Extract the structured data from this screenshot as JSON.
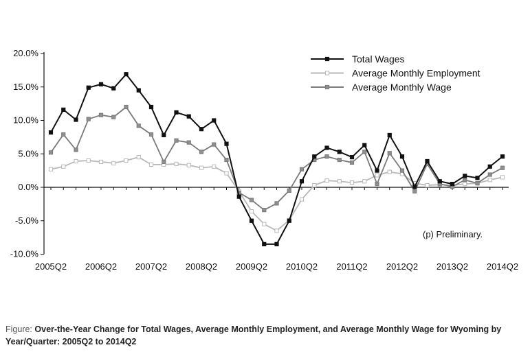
{
  "chart_data": {
    "type": "line",
    "x": [
      "2005Q2",
      "2005Q3",
      "2005Q4",
      "2006Q1",
      "2006Q2",
      "2006Q3",
      "2006Q4",
      "2007Q1",
      "2007Q2",
      "2007Q3",
      "2007Q4",
      "2008Q1",
      "2008Q2",
      "2008Q3",
      "2008Q4",
      "2009Q1",
      "2009Q2",
      "2009Q3",
      "2009Q4",
      "2010Q1",
      "2010Q2",
      "2010Q3",
      "2010Q4",
      "2011Q1",
      "2011Q2",
      "2011Q3",
      "2011Q4",
      "2012Q1",
      "2012Q2",
      "2012Q3",
      "2012Q4",
      "2013Q1",
      "2013Q2",
      "2013Q3",
      "2013Q4",
      "2014Q1",
      "2014Q2"
    ],
    "tick_labels": [
      "2005Q2",
      "2006Q2",
      "2007Q2",
      "2008Q2",
      "2009Q2",
      "2010Q2",
      "2011Q2",
      "2012Q2",
      "2013Q2",
      "2014Q2"
    ],
    "y_tick_labels": [
      "20.0%",
      "15.0%",
      "10.0%",
      "5.0%",
      "0.0%",
      "-5.0%",
      "-10.0%"
    ],
    "ylim": [
      -10,
      20
    ],
    "y_ticks": [
      20,
      15,
      10,
      5,
      0,
      -5,
      -10
    ],
    "series": [
      {
        "name": "Total Wages",
        "color": "#111111",
        "marker_fill": "#111111",
        "values": [
          8.2,
          11.6,
          10.1,
          14.9,
          15.4,
          14.8,
          16.9,
          14.5,
          12.0,
          7.8,
          11.2,
          10.6,
          8.7,
          10.0,
          6.5,
          -1.4,
          -5.0,
          -8.5,
          -8.5,
          -5.0,
          0.9,
          4.6,
          5.9,
          5.3,
          4.5,
          6.3,
          2.5,
          7.8,
          4.6,
          0.1,
          3.9,
          0.9,
          0.5,
          1.7,
          1.4,
          3.1,
          4.6
        ]
      },
      {
        "name": "Average Monthly Employment",
        "color": "#b8b8b8",
        "marker_fill": "#ffffff",
        "values": [
          2.7,
          3.1,
          3.9,
          4.0,
          3.8,
          3.6,
          4.0,
          4.5,
          3.4,
          3.4,
          3.5,
          3.3,
          2.9,
          3.1,
          2.1,
          -0.6,
          -3.6,
          -5.5,
          -6.5,
          -4.9,
          -1.8,
          0.3,
          1.0,
          0.9,
          0.7,
          0.9,
          1.8,
          2.3,
          2.0,
          0.6,
          0.3,
          0.4,
          0.3,
          0.5,
          0.6,
          1.1,
          1.5
        ]
      },
      {
        "name": "Average Monthly Wage",
        "color": "#7a7a7a",
        "marker_fill": "#8f8f8f",
        "values": [
          5.2,
          7.9,
          5.6,
          10.2,
          10.8,
          10.5,
          12.0,
          9.2,
          7.9,
          3.8,
          7.0,
          6.7,
          5.3,
          6.4,
          4.1,
          -0.8,
          -1.9,
          -3.4,
          -2.4,
          -0.5,
          2.7,
          4.1,
          4.6,
          4.1,
          3.7,
          5.3,
          0.5,
          5.1,
          2.5,
          -0.6,
          3.5,
          0.5,
          0.1,
          1.1,
          0.6,
          1.9,
          2.9
        ]
      }
    ],
    "legend_position": "top-right",
    "grid": false,
    "annotation": "(p) Preliminary."
  },
  "caption": {
    "prefix": "Figure:",
    "text": "Over-the-Year Change for Total Wages, Average Monthly Employment, and Average Monthly Wage for Wyoming by Year/Quarter: 2005Q2 to 2014Q2"
  }
}
